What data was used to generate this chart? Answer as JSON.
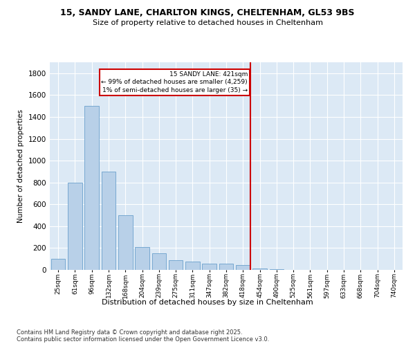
{
  "title_line1": "15, SANDY LANE, CHARLTON KINGS, CHELTENHAM, GL53 9BS",
  "title_line2": "Size of property relative to detached houses in Cheltenham",
  "xlabel": "Distribution of detached houses by size in Cheltenham",
  "ylabel": "Number of detached properties",
  "footnote": "Contains HM Land Registry data © Crown copyright and database right 2025.\nContains public sector information licensed under the Open Government Licence v3.0.",
  "annotation_title": "15 SANDY LANE: 421sqm",
  "annotation_line2": "← 99% of detached houses are smaller (4,259)",
  "annotation_line3": "1% of semi-detached houses are larger (35) →",
  "categories": [
    "25sqm",
    "61sqm",
    "96sqm",
    "132sqm",
    "168sqm",
    "204sqm",
    "239sqm",
    "275sqm",
    "311sqm",
    "347sqm",
    "382sqm",
    "418sqm",
    "454sqm",
    "490sqm",
    "525sqm",
    "561sqm",
    "597sqm",
    "633sqm",
    "668sqm",
    "704sqm",
    "740sqm"
  ],
  "values": [
    100,
    800,
    1500,
    900,
    500,
    210,
    150,
    90,
    75,
    60,
    55,
    45,
    10,
    5,
    3,
    2,
    1,
    1,
    1,
    1,
    1
  ],
  "bar_color": "#b8d0e8",
  "bar_edge_color": "#6aa0cc",
  "marker_line_color": "#cc0000",
  "annotation_box_color": "#cc0000",
  "bg_color": "#dce9f5",
  "ylim": [
    0,
    1900
  ],
  "yticks": [
    0,
    200,
    400,
    600,
    800,
    1000,
    1200,
    1400,
    1600,
    1800
  ]
}
